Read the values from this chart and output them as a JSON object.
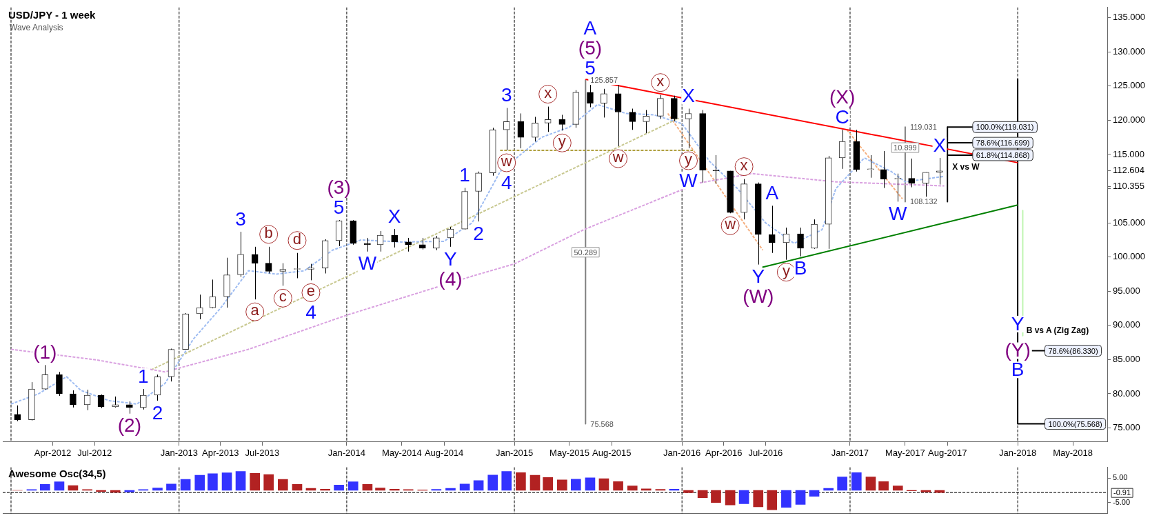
{
  "chart_data": [
    {
      "type": "candlestick",
      "title": "USD/JPY - 1 week",
      "subtitle": "Wave Analysis",
      "x": [
        "2012-01-15",
        "2012-02-15",
        "2012-03-15",
        "2012-04-15",
        "2012-05-15",
        "2012-06-15",
        "2012-07-15",
        "2012-08-15",
        "2012-09-15",
        "2012-10-15",
        "2012-11-15",
        "2012-12-15",
        "2013-01-15",
        "2013-02-15",
        "2013-03-15",
        "2013-04-15",
        "2013-05-15",
        "2013-06-15",
        "2013-07-15",
        "2013-08-15",
        "2013-09-15",
        "2013-10-15",
        "2013-11-15",
        "2013-12-15",
        "2014-01-15",
        "2014-02-15",
        "2014-03-15",
        "2014-04-15",
        "2014-05-15",
        "2014-06-15",
        "2014-07-15",
        "2014-08-15",
        "2014-09-15",
        "2014-10-15",
        "2014-11-15",
        "2014-12-15",
        "2015-01-15",
        "2015-02-15",
        "2015-03-15",
        "2015-04-15",
        "2015-05-15",
        "2015-06-15",
        "2015-07-15",
        "2015-08-15",
        "2015-09-15",
        "2015-10-15",
        "2015-11-15",
        "2015-12-15",
        "2016-01-15",
        "2016-02-15",
        "2016-03-15",
        "2016-04-15",
        "2016-05-15",
        "2016-06-15",
        "2016-07-15",
        "2016-08-15",
        "2016-09-15",
        "2016-10-15",
        "2016-11-15",
        "2016-12-15",
        "2017-01-15",
        "2017-02-15",
        "2017-03-15",
        "2017-04-15",
        "2017-05-15",
        "2017-06-15",
        "2017-07-15"
      ],
      "ohlc": [
        [
          77.0,
          78.3,
          76.0,
          76.2
        ],
        [
          76.2,
          81.7,
          76.1,
          80.7
        ],
        [
          80.7,
          84.2,
          80.6,
          82.8
        ],
        [
          82.8,
          83.2,
          79.7,
          80.0
        ],
        [
          80.0,
          80.5,
          78.0,
          78.4
        ],
        [
          78.4,
          80.6,
          77.6,
          79.8
        ],
        [
          79.8,
          79.9,
          77.9,
          78.1
        ],
        [
          78.1,
          79.6,
          78.0,
          78.4
        ],
        [
          78.4,
          78.9,
          77.1,
          78.0
        ],
        [
          78.0,
          80.7,
          77.7,
          79.8
        ],
        [
          79.8,
          82.8,
          79.0,
          82.5
        ],
        [
          82.5,
          86.6,
          81.8,
          86.5
        ],
        [
          86.5,
          91.8,
          86.5,
          91.7
        ],
        [
          91.7,
          94.5,
          90.9,
          92.6
        ],
        [
          92.6,
          96.7,
          92.5,
          94.2
        ],
        [
          94.2,
          99.9,
          92.6,
          97.4
        ],
        [
          97.4,
          103.7,
          97.1,
          100.4
        ],
        [
          100.4,
          101.5,
          93.8,
          99.1
        ],
        [
          99.1,
          101.5,
          97.6,
          97.9
        ],
        [
          97.9,
          99.1,
          95.8,
          98.2
        ],
        [
          98.2,
          100.6,
          96.9,
          98.2
        ],
        [
          98.2,
          99.0,
          96.6,
          98.4
        ],
        [
          98.4,
          102.6,
          97.6,
          102.4
        ],
        [
          102.4,
          105.4,
          101.6,
          105.3
        ],
        [
          105.3,
          105.4,
          101.8,
          102.0
        ],
        [
          102.0,
          102.8,
          100.8,
          101.8
        ],
        [
          101.8,
          103.8,
          100.8,
          103.2
        ],
        [
          103.2,
          104.1,
          101.4,
          102.2
        ],
        [
          102.2,
          102.8,
          100.8,
          101.8
        ],
        [
          101.8,
          102.8,
          101.1,
          101.3
        ],
        [
          101.3,
          103.1,
          101.0,
          102.8
        ],
        [
          102.8,
          104.4,
          101.5,
          104.1
        ],
        [
          104.1,
          110.1,
          104.0,
          109.6
        ],
        [
          109.6,
          112.5,
          105.2,
          112.3
        ],
        [
          112.3,
          118.9,
          111.9,
          118.6
        ],
        [
          118.6,
          121.8,
          115.6,
          119.8
        ],
        [
          119.8,
          121.0,
          115.9,
          117.5
        ],
        [
          117.5,
          120.5,
          116.9,
          119.6
        ],
        [
          119.6,
          122.0,
          118.3,
          120.1
        ],
        [
          120.1,
          120.8,
          118.5,
          119.4
        ],
        [
          119.4,
          124.4,
          118.9,
          124.1
        ],
        [
          124.1,
          125.8,
          121.9,
          122.5
        ],
        [
          122.5,
          124.6,
          120.4,
          123.9
        ],
        [
          123.9,
          125.3,
          116.2,
          121.2
        ],
        [
          121.2,
          121.7,
          118.6,
          119.8
        ],
        [
          119.8,
          121.5,
          118.1,
          120.6
        ],
        [
          120.6,
          123.7,
          120.2,
          123.2
        ],
        [
          123.2,
          123.6,
          119.9,
          120.2
        ],
        [
          120.2,
          121.7,
          115.9,
          121.0
        ],
        [
          121.0,
          121.5,
          110.9,
          112.7
        ],
        [
          112.7,
          114.9,
          110.7,
          112.6
        ],
        [
          112.6,
          112.6,
          106.4,
          106.5
        ],
        [
          106.5,
          111.4,
          105.5,
          110.7
        ],
        [
          110.7,
          110.9,
          98.9,
          103.3
        ],
        [
          103.3,
          107.5,
          100.6,
          102.1
        ],
        [
          102.1,
          104.3,
          99.6,
          103.4
        ],
        [
          103.4,
          104.3,
          100.1,
          101.3
        ],
        [
          101.3,
          105.5,
          101.2,
          104.8
        ],
        [
          104.8,
          114.8,
          101.2,
          114.5
        ],
        [
          114.5,
          118.6,
          112.9,
          116.9
        ],
        [
          116.9,
          118.6,
          112.5,
          112.8
        ],
        [
          112.8,
          114.9,
          111.6,
          112.8
        ],
        [
          112.8,
          115.5,
          110.1,
          111.4
        ],
        [
          111.4,
          112.2,
          108.1,
          111.5
        ],
        [
          111.5,
          114.4,
          110.2,
          110.8
        ],
        [
          110.8,
          112.4,
          108.8,
          112.4
        ],
        [
          112.4,
          114.5,
          110.6,
          112.6
        ]
      ],
      "series": [
        {
          "type": "line",
          "color": "#9ebcf2",
          "line_style": "dashed",
          "x": [
            "2012-01-01",
            "2012-03-01",
            "2012-05-01",
            "2012-06-01",
            "2012-08-01",
            "2012-10-01",
            "2012-12-01",
            "2013-02-01",
            "2013-04-01",
            "2013-06-01",
            "2013-08-01",
            "2013-10-01",
            "2013-12-01",
            "2014-02-01",
            "2014-05-01",
            "2014-08-01",
            "2014-10-01",
            "2014-12-01",
            "2015-03-01",
            "2015-05-01",
            "2015-07-01",
            "2015-09-01",
            "2015-11-01",
            "2016-01-01",
            "2016-03-01",
            "2016-05-01",
            "2016-07-01",
            "2016-09-01",
            "2016-11-01",
            "2016-12-01",
            "2017-02-01",
            "2017-04-01",
            "2017-05-01",
            "2017-07-25"
          ],
          "values": [
            78.5,
            80,
            82.5,
            80.5,
            79,
            78.5,
            81.5,
            88,
            92.5,
            98,
            97.5,
            98,
            101,
            102.5,
            102.2,
            102.3,
            105,
            112.5,
            117.5,
            119,
            122.3,
            121,
            120.8,
            119.5,
            114,
            110,
            105,
            102,
            104,
            110,
            114.5,
            112.5,
            111,
            111.8
          ]
        },
        {
          "type": "line",
          "color": "#d9a0e0",
          "line_style": "dashed",
          "x": [
            "2012-01-01",
            "2012-07-01",
            "2012-12-01",
            "2013-06-01",
            "2014-01-01",
            "2014-10-01",
            "2015-01-01",
            "2015-06-01",
            "2016-02-05",
            "2016-06-01",
            "2016-12-01",
            "2017-07-25"
          ],
          "values": [
            86.5,
            85,
            83.2,
            86.5,
            91.5,
            97.2,
            99,
            104,
            110.8,
            112.2,
            111,
            110.4
          ]
        },
        {
          "type": "line",
          "color": "#ff0000",
          "x": [
            "2015-06-05",
            "2018-01-01"
          ],
          "values": [
            126,
            113.8
          ]
        },
        {
          "type": "line",
          "color": "#008000",
          "x": [
            "2016-06-24",
            "2018-01-01"
          ],
          "values": [
            98.5,
            107.6
          ]
        },
        {
          "type": "line",
          "color": "#c8c890",
          "line_style": "dashed",
          "x": [
            "2012-11-01",
            "2015-12-25"
          ],
          "values": [
            83.5,
            120.3
          ]
        },
        {
          "type": "line",
          "color": "#b0a040",
          "line_style": "dashed",
          "x": [
            "2014-12-01",
            "2016-01-25"
          ],
          "values": [
            115.6,
            115.6
          ]
        },
        {
          "type": "line",
          "color": "#f5b080",
          "line_style": "dashed",
          "x": [
            "2015-12-01",
            "2016-06-25"
          ],
          "values": [
            121,
            101
          ]
        },
        {
          "type": "line",
          "color": "#f5b080",
          "line_style": "dashed",
          "x": [
            "2016-12-25",
            "2017-04-25"
          ],
          "values": [
            118.6,
            108.5
          ]
        },
        {
          "type": "line",
          "color": "#808080",
          "x": [
            "2015-06-05",
            "2015-06-05"
          ],
          "values": [
            125.9,
            75.6
          ]
        },
        {
          "type": "line",
          "color": "#808080",
          "x": [
            "2017-05-01",
            "2017-05-01"
          ],
          "values": [
            119,
            108.1
          ]
        },
        {
          "type": "line",
          "color": "#000000",
          "x": [
            "2017-08-01",
            "2017-08-01"
          ],
          "values": [
            119,
            108.1
          ]
        },
        {
          "type": "line",
          "color": "#000000",
          "x": [
            "2017-08-01",
            "2017-09-25"
          ],
          "values": [
            119,
            119
          ]
        },
        {
          "type": "line",
          "color": "#000000",
          "x": [
            "2017-08-01",
            "2017-09-25"
          ],
          "values": [
            116.7,
            116.7
          ]
        },
        {
          "type": "line",
          "color": "#000000",
          "x": [
            "2017-08-01",
            "2017-09-25"
          ],
          "values": [
            114.9,
            114.9
          ]
        },
        {
          "type": "line",
          "color": "#000000",
          "x": [
            "2018-01-01",
            "2018-01-01"
          ],
          "values": [
            126,
            75.6
          ]
        },
        {
          "type": "line",
          "color": "#000000",
          "x": [
            "2018-02-01",
            "2018-03-01"
          ],
          "values": [
            86.3,
            86.3
          ]
        },
        {
          "type": "line",
          "color": "#000000",
          "x": [
            "2018-01-01",
            "2018-03-01"
          ],
          "values": [
            75.6,
            75.6
          ]
        },
        {
          "type": "line",
          "color": "#bff5b0",
          "x": [
            "2018-01-12",
            "2018-01-12"
          ],
          "values": [
            106.8,
            88.5
          ]
        }
      ],
      "xlim": [
        "2011-12-14",
        "2018-07-15"
      ],
      "xticks": [
        {
          "value": "2012-04-01",
          "label": "Apr-2012"
        },
        {
          "value": "2012-07-01",
          "label": "Jul-2012"
        },
        {
          "value": "2013-01-01",
          "label": "Jan-2013"
        },
        {
          "value": "2013-04-01",
          "label": "Apr-2013"
        },
        {
          "value": "2013-07-01",
          "label": "Jul-2013"
        },
        {
          "value": "2014-01-01",
          "label": "Jan-2014"
        },
        {
          "value": "2014-05-01",
          "label": "May-2014"
        },
        {
          "value": "2014-08-01",
          "label": "Aug-2014"
        },
        {
          "value": "2015-01-01",
          "label": "Jan-2015"
        },
        {
          "value": "2015-05-01",
          "label": "May-2015"
        },
        {
          "value": "2015-08-01",
          "label": "Aug-2015"
        },
        {
          "value": "2016-01-01",
          "label": "Jan-2016"
        },
        {
          "value": "2016-04-01",
          "label": "Apr-2016"
        },
        {
          "value": "2016-07-01",
          "label": "Jul-2016"
        },
        {
          "value": "2017-01-01",
          "label": "Jan-2017"
        },
        {
          "value": "2017-05-01",
          "label": "May-2017"
        },
        {
          "value": "2017-08-01",
          "label": "Aug-2017"
        },
        {
          "value": "2018-01-01",
          "label": "Jan-2018"
        },
        {
          "value": "2018-05-01",
          "label": "May-2018"
        }
      ],
      "ylim": [
        73,
        136.5
      ],
      "yticks": [
        {
          "value": 75,
          "label": "75.000"
        },
        {
          "value": 80,
          "label": "80.000"
        },
        {
          "value": 85,
          "label": "85.000"
        },
        {
          "value": 90,
          "label": "90.000"
        },
        {
          "value": 95,
          "label": "95.000"
        },
        {
          "value": 100,
          "label": "100.000"
        },
        {
          "value": 105,
          "label": "105.000"
        },
        {
          "value": 110,
          "label": null
        },
        {
          "value": 110.355,
          "label": "110.355"
        },
        {
          "value": 112.604,
          "label": "112.604"
        },
        {
          "value": 115,
          "label": "115.000"
        },
        {
          "value": 120,
          "label": "120.000"
        },
        {
          "value": 125,
          "label": "125.000"
        },
        {
          "value": 130,
          "label": "130.000"
        },
        {
          "value": 135,
          "label": "135.000"
        }
      ],
      "ref_lines": [
        {
          "axis": "x",
          "value": "2012-01-01",
          "color": "#000000",
          "line_style": "dashed"
        },
        {
          "axis": "x",
          "value": "2013-01-01",
          "color": "#000000",
          "line_style": "dashed"
        },
        {
          "axis": "x",
          "value": "2014-01-01",
          "color": "#000000",
          "line_style": "dashed"
        },
        {
          "axis": "x",
          "value": "2015-01-01",
          "color": "#000000",
          "line_style": "dashed"
        },
        {
          "axis": "x",
          "value": "2016-01-01",
          "color": "#000000",
          "line_style": "dashed"
        },
        {
          "axis": "x",
          "value": "2017-01-01",
          "color": "#000000",
          "line_style": "dashed"
        },
        {
          "axis": "x",
          "value": "2018-01-01",
          "color": "#000000",
          "line_style": "dashed"
        }
      ],
      "annotations": [
        {
          "text": "(1)",
          "x": "2012-03-15",
          "y": 84.2
        },
        {
          "text": "(2)",
          "x": "2012-09-15",
          "y": 77.1
        },
        {
          "text": "1",
          "x": "2012-10-15",
          "y": 80.7
        },
        {
          "text": "2",
          "x": "2012-11-15",
          "y": 79.0
        },
        {
          "text": "3",
          "x": "2013-05-15",
          "y": 103.7
        },
        {
          "text": "a",
          "x": "2013-06-15",
          "y": 93.8
        },
        {
          "text": "b",
          "x": "2013-07-15",
          "y": 101.5
        },
        {
          "text": "c",
          "x": "2013-08-15",
          "y": 95.8
        },
        {
          "text": "d",
          "x": "2013-09-15",
          "y": 100.6
        },
        {
          "text": "e",
          "x": "2013-10-15",
          "y": 96.6
        },
        {
          "text": "4",
          "x": "2013-10-15",
          "y": 96.6
        },
        {
          "text": "5",
          "x": "2013-12-15",
          "y": 105.4
        },
        {
          "text": "(3)",
          "x": "2013-12-15",
          "y": 105.4
        },
        {
          "text": "W",
          "x": "2014-02-15",
          "y": 100.8
        },
        {
          "text": "X",
          "x": "2014-04-15",
          "y": 104.1
        },
        {
          "text": "Y",
          "x": "2014-08-15",
          "y": 101.5
        },
        {
          "text": "(4)",
          "x": "2014-08-15",
          "y": 101.5
        },
        {
          "text": "1",
          "x": "2014-09-15",
          "y": 110.1
        },
        {
          "text": "2",
          "x": "2014-10-15",
          "y": 105.2
        },
        {
          "text": "3",
          "x": "2014-12-15",
          "y": 121.8
        },
        {
          "text": "w",
          "x": "2014-12-15",
          "y": 115.6
        },
        {
          "text": "4",
          "x": "2014-12-15",
          "y": 115.6
        },
        {
          "text": "x",
          "x": "2015-03-15",
          "y": 122.0
        },
        {
          "text": "y",
          "x": "2015-04-15",
          "y": 118.5
        },
        {
          "text": "5",
          "x": "2015-06-15",
          "y": 125.8
        },
        {
          "text": "(5)",
          "x": "2015-06-15",
          "y": 125.8
        },
        {
          "text": "A",
          "x": "2015-06-15",
          "y": 125.8
        },
        {
          "text": "w",
          "x": "2015-08-15",
          "y": 116.2
        },
        {
          "text": "x",
          "x": "2015-11-15",
          "y": 123.7
        },
        {
          "text": "X",
          "x": "2016-01-15",
          "y": 121.7
        },
        {
          "text": "y",
          "x": "2016-01-15",
          "y": 115.9
        },
        {
          "text": "W",
          "x": "2016-01-15",
          "y": 115.9
        },
        {
          "text": "x",
          "x": "2016-05-15",
          "y": 111.4
        },
        {
          "text": "w",
          "x": "2016-04-15",
          "y": 106.4
        },
        {
          "text": "A",
          "x": "2016-07-15",
          "y": 107.5
        },
        {
          "text": "y",
          "x": "2016-08-15",
          "y": 99.6
        },
        {
          "text": "B",
          "x": "2016-09-15",
          "y": 100.1
        },
        {
          "text": "Y",
          "x": "2016-06-15",
          "y": 98.9
        },
        {
          "text": "(W)",
          "x": "2016-06-15",
          "y": 98.9
        },
        {
          "text": "C",
          "x": "2016-12-15",
          "y": 118.6
        },
        {
          "text": "(X)",
          "x": "2016-12-15",
          "y": 118.6
        },
        {
          "text": "X",
          "x": "2017-07-15",
          "y": 114.5
        },
        {
          "text": "W",
          "x": "2017-04-15",
          "y": 108.1
        },
        {
          "text": "Y",
          "x": "2018-01-01",
          "y": 90.2
        },
        {
          "text": "(Y)",
          "x": "2018-01-01",
          "y": 86.3
        },
        {
          "text": "B",
          "x": "2018-01-01",
          "y": 83.5
        },
        {
          "text": "125.857",
          "x": "2015-06-05",
          "y": 125.9
        },
        {
          "text": "75.568",
          "x": "2015-06-05",
          "y": 75.6
        },
        {
          "text": "50.289",
          "x": "2015-06-05",
          "y": 100.7
        },
        {
          "text": "119.031",
          "x": "2017-05-01",
          "y": 119
        },
        {
          "text": "108.132",
          "x": "2017-05-01",
          "y": 108.1
        },
        {
          "text": "10.899",
          "x": "2017-05-01",
          "y": 116
        },
        {
          "text": "100.0%(119.031)",
          "x": "2017-09-25",
          "y": 119
        },
        {
          "text": "78.6%(116.699)",
          "x": "2017-09-25",
          "y": 116.7
        },
        {
          "text": "61.8%(114.868)",
          "x": "2017-09-25",
          "y": 114.9
        },
        "X vs W",
        "B vs A (Zig Zag)",
        {
          "text": "78.6%(86.330)",
          "x": "2018-03-01",
          "y": 86.3
        },
        {
          "text": "100.0%(75.568)",
          "x": "2018-03-01",
          "y": 75.6
        }
      ]
    },
    {
      "type": "bar",
      "title": "Awesome Osc(34,5)",
      "x": [
        "2012-01-15",
        "2012-02-15",
        "2012-03-15",
        "2012-04-15",
        "2012-05-15",
        "2012-06-15",
        "2012-07-15",
        "2012-08-15",
        "2012-09-15",
        "2012-10-15",
        "2012-11-15",
        "2012-12-15",
        "2013-01-15",
        "2013-02-15",
        "2013-03-15",
        "2013-04-15",
        "2013-05-15",
        "2013-06-15",
        "2013-07-15",
        "2013-08-15",
        "2013-09-15",
        "2013-10-15",
        "2013-11-15",
        "2013-12-15",
        "2014-01-15",
        "2014-02-15",
        "2014-03-15",
        "2014-04-15",
        "2014-05-15",
        "2014-06-15",
        "2014-07-15",
        "2014-08-15",
        "2014-09-15",
        "2014-10-15",
        "2014-11-15",
        "2014-12-15",
        "2015-01-15",
        "2015-02-15",
        "2015-03-15",
        "2015-04-15",
        "2015-05-15",
        "2015-06-15",
        "2015-07-15",
        "2015-08-15",
        "2015-09-15",
        "2015-10-15",
        "2015-11-15",
        "2015-12-15",
        "2016-01-15",
        "2016-02-15",
        "2016-03-15",
        "2016-04-15",
        "2016-05-15",
        "2016-06-15",
        "2016-07-15",
        "2016-08-15",
        "2016-09-15",
        "2016-10-15",
        "2016-11-15",
        "2016-12-15",
        "2017-01-15",
        "2017-02-15",
        "2017-03-15",
        "2017-04-15",
        "2017-05-15",
        "2017-06-15",
        "2017-07-15"
      ],
      "values": [
        0,
        0.3,
        2.5,
        3.5,
        2,
        0.3,
        -0.5,
        -0.8,
        -0.7,
        0.3,
        1,
        2.6,
        4.5,
        6.2,
        6.9,
        7.2,
        7.8,
        7,
        6.5,
        4.5,
        2.5,
        0.8,
        0.5,
        2.2,
        3.5,
        2.5,
        1,
        0.5,
        0.3,
        0.2,
        0.4,
        0.8,
        2.6,
        4,
        6.3,
        7.8,
        7.3,
        6.2,
        5.3,
        4.3,
        4.6,
        5.2,
        4.8,
        3.6,
        1.8,
        0.6,
        0.4,
        0.5,
        -1,
        -3,
        -5,
        -6,
        -5.5,
        -6.8,
        -8,
        -7,
        -5.8,
        -2.5,
        0.8,
        5.5,
        7.3,
        5.5,
        3.6,
        1.8,
        -0.2,
        -0.7,
        -0.9
      ],
      "colors": [
        "#b22222",
        "#3333ff",
        "#3333ff",
        "#3333ff",
        "#b22222",
        "#b22222",
        "#b22222",
        "#b22222",
        "#3333ff",
        "#3333ff",
        "#3333ff",
        "#3333ff",
        "#3333ff",
        "#3333ff",
        "#3333ff",
        "#3333ff",
        "#3333ff",
        "#b22222",
        "#b22222",
        "#b22222",
        "#b22222",
        "#b22222",
        "#b22222",
        "#3333ff",
        "#3333ff",
        "#b22222",
        "#b22222",
        "#b22222",
        "#b22222",
        "#b22222",
        "#3333ff",
        "#3333ff",
        "#3333ff",
        "#3333ff",
        "#3333ff",
        "#3333ff",
        "#b22222",
        "#b22222",
        "#b22222",
        "#b22222",
        "#3333ff",
        "#3333ff",
        "#b22222",
        "#b22222",
        "#b22222",
        "#b22222",
        "#b22222",
        "#3333ff",
        "#b22222",
        "#b22222",
        "#b22222",
        "#b22222",
        "#3333ff",
        "#b22222",
        "#b22222",
        "#3333ff",
        "#3333ff",
        "#3333ff",
        "#3333ff",
        "#3333ff",
        "#3333ff",
        "#b22222",
        "#b22222",
        "#b22222",
        "#b22222",
        "#b22222",
        "#b22222"
      ],
      "xlim": [
        "2011-12-14",
        "2018-07-15"
      ],
      "ylim": [
        -9.5,
        9.5
      ],
      "yticks": [
        {
          "value": 5,
          "label": "5.00"
        },
        {
          "value": -5,
          "label": "-5.00"
        }
      ],
      "tick_labels": "y",
      "ref_lines": [
        {
          "axis": "y",
          "value": -0.91,
          "label": "-0.91",
          "color": "#000000",
          "line_style": "dashed"
        },
        {
          "axis": "x",
          "value": "2012-01-01",
          "color": "#000000",
          "line_style": "dashed"
        },
        {
          "axis": "x",
          "value": "2013-01-01",
          "color": "#000000",
          "line_style": "dashed"
        },
        {
          "axis": "x",
          "value": "2014-01-01",
          "color": "#000000",
          "line_style": "dashed"
        },
        {
          "axis": "x",
          "value": "2015-01-01",
          "color": "#000000",
          "line_style": "dashed"
        },
        {
          "axis": "x",
          "value": "2016-01-01",
          "color": "#000000",
          "line_style": "dashed"
        },
        {
          "axis": "x",
          "value": "2017-01-01",
          "color": "#000000",
          "line_style": "dashed"
        },
        {
          "axis": "x",
          "value": "2018-01-01",
          "color": "#000000",
          "line_style": "dashed"
        }
      ]
    }
  ]
}
